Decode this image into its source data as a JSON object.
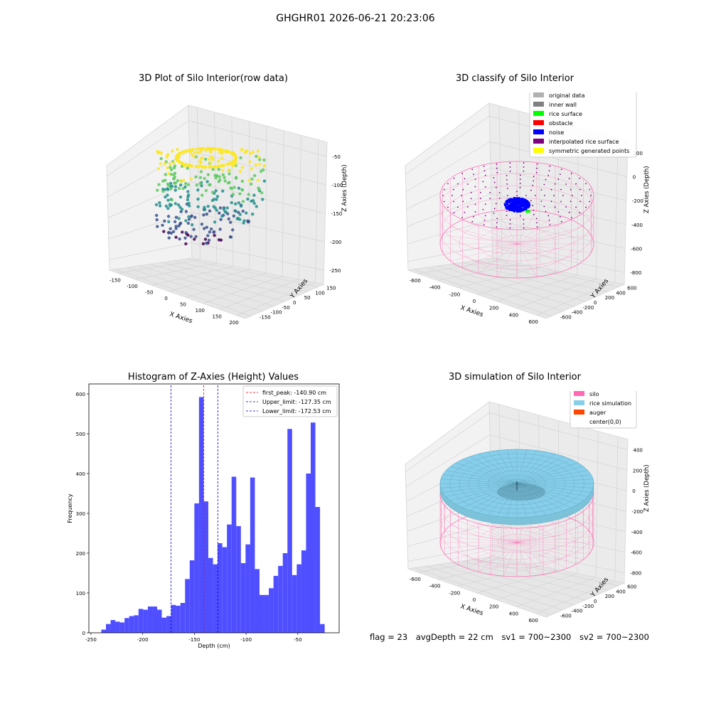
{
  "figure_title": "GHGHR01 2026-06-21 20:23:06",
  "status": {
    "flag": "flag = 23",
    "avg_depth": "avgDepth = 22 cm",
    "sv1": "sv1 = 700~2300",
    "sv2": "sv2 = 700~2300"
  },
  "chart_data": [
    {
      "id": "raw",
      "type": "scatter",
      "title": "3D Plot of Silo Interior(row data)",
      "xlabel": "X Axies",
      "ylabel": "Y Axies",
      "zlabel": "Z Axies (Depth)",
      "x_ticks": [
        "-150",
        "-100",
        "-50",
        "0",
        "50",
        "100",
        "150",
        "200"
      ],
      "y_ticks": [
        "150",
        "100",
        "50",
        "0",
        "-50",
        "-100",
        "-150"
      ],
      "z_ticks": [
        "-50",
        "-100",
        "-150",
        "-200",
        "-250"
      ],
      "colormap": [
        "#440154",
        "#3b528b",
        "#21918c",
        "#5ec962",
        "#fde725"
      ]
    },
    {
      "id": "classify",
      "type": "scatter",
      "title": "3D classify of Silo Interior",
      "xlabel": "X Axies",
      "ylabel": "Y Axies",
      "zlabel": "Z Axies (Depth)",
      "x_ticks": [
        "-600",
        "-400",
        "-200",
        "0",
        "200",
        "400",
        "600"
      ],
      "y_ticks": [
        "600",
        "400",
        "200",
        "0",
        "-200",
        "-400",
        "-600"
      ],
      "z_ticks": [
        "200",
        "0",
        "-200",
        "-400",
        "-600",
        "-800"
      ],
      "legend_position": "top-right",
      "legend": [
        {
          "label": "original data",
          "color": "#b0b0b0"
        },
        {
          "label": "inner wall",
          "color": "#808080"
        },
        {
          "label": "rice surface",
          "color": "#00ff00"
        },
        {
          "label": "obstacle",
          "color": "#ff0000"
        },
        {
          "label": "noise",
          "color": "#0000ff"
        },
        {
          "label": "interpolated rice surface",
          "color": "#800080"
        },
        {
          "label": "symmetric generated points",
          "color": "#ffff00"
        }
      ]
    },
    {
      "id": "histogram",
      "type": "bar",
      "title": "Histogram of Z-Axies (Height) Values",
      "xlabel": "Depth (cm)",
      "ylabel": "Frequency",
      "xlim": [
        -252,
        -10
      ],
      "ylim": [
        0,
        625
      ],
      "bin_start": -240,
      "bin_width": 4.5,
      "bar_color": "#4b4bff",
      "x_ticks": [
        -250,
        -200,
        -150,
        -100,
        -50
      ],
      "y_ticks": [
        0,
        100,
        200,
        300,
        400,
        500,
        600
      ],
      "values": [
        8,
        22,
        32,
        28,
        26,
        37,
        42,
        44,
        60,
        58,
        66,
        66,
        58,
        38,
        42,
        70,
        68,
        75,
        135,
        182,
        325,
        592,
        330,
        188,
        172,
        225,
        215,
        272,
        392,
        268,
        175,
        222,
        390,
        160,
        95,
        95,
        112,
        143,
        168,
        200,
        512,
        145,
        172,
        207,
        400,
        528,
        316,
        22
      ],
      "lines": [
        {
          "label": "first_peak: -140.90 cm",
          "x": -140.9,
          "color": "#ff0000"
        },
        {
          "label": "Upper_limit: -127.35 cm",
          "x": -127.35,
          "color": "#0000cc"
        },
        {
          "label": "Lower_limit: -172.53 cm",
          "x": -172.53,
          "color": "#0000cc"
        }
      ],
      "legend_position": "top-right"
    },
    {
      "id": "simulation",
      "type": "surface",
      "title": "3D simulation of Silo Interior",
      "xlabel": "X Axies",
      "ylabel": "Y Axies",
      "zlabel": "Z Axies (Depth)",
      "x_ticks": [
        "-600",
        "-400",
        "-200",
        "0",
        "200",
        "400",
        "600"
      ],
      "y_ticks": [
        "600",
        "400",
        "200",
        "0",
        "-200",
        "-400",
        "-600"
      ],
      "z_ticks": [
        "400",
        "200",
        "0",
        "-200",
        "-400",
        "-600",
        "-800"
      ],
      "legend_position": "top-right",
      "legend": [
        {
          "label": "silo",
          "color": "#ff69b4"
        },
        {
          "label": "rice simulation",
          "color": "#87ceeb"
        },
        {
          "label": "auger",
          "color": "#ff4500"
        },
        {
          "label": "center(0,0)",
          "color": ""
        }
      ]
    }
  ]
}
